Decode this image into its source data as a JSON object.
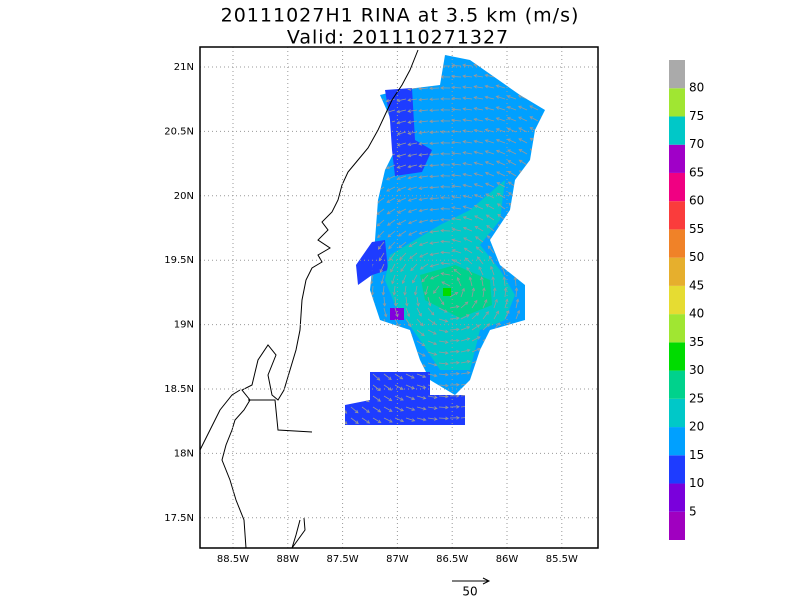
{
  "header": {
    "title": "20111027H1 RINA at 3.5 km (m/s)",
    "subtitle": "Valid: 201110271327"
  },
  "map": {
    "lon_labels": [
      "88.5W",
      "88W",
      "87.5W",
      "87W",
      "86.5W",
      "86W",
      "85.5W"
    ],
    "lat_labels": [
      "21N",
      "20.5N",
      "20N",
      "19.5N",
      "19N",
      "18.5N",
      "18N",
      "17.5N"
    ]
  },
  "colorbar": {
    "labels": [
      5,
      10,
      15,
      20,
      25,
      30,
      35,
      40,
      45,
      50,
      55,
      60,
      65,
      70,
      75,
      80
    ]
  },
  "vector_reference": {
    "label": 50
  }
}
